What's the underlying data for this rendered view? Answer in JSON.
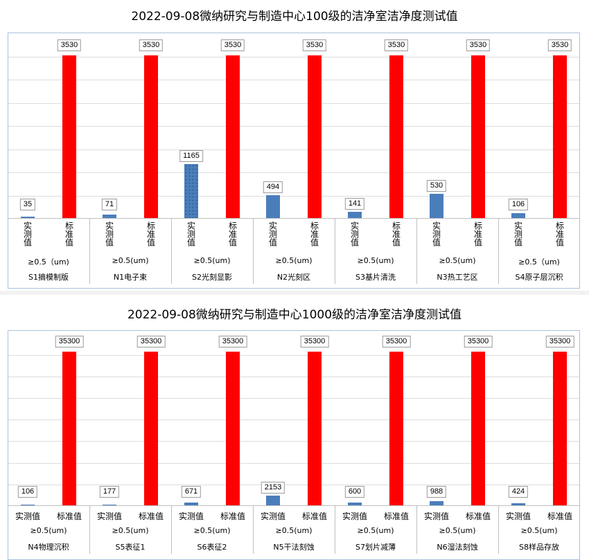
{
  "chart_data": [
    {
      "type": "bar",
      "title": "2022-09-08微纳研究与制造中心100级的洁净室洁净度测试值",
      "bar_labels": [
        "实测值",
        "标准值"
      ],
      "label_orientation": "vertical",
      "ylim": [
        0,
        3530
      ],
      "colors": {
        "actual": "#4a7ebb",
        "standard": "#ff0000"
      },
      "groups": [
        {
          "name": "S1摘模制版",
          "size": "≥0.5（um)",
          "actual": 35,
          "standard": 3530
        },
        {
          "name": "N1电子束",
          "size": "≥0.5(um)",
          "actual": 71,
          "standard": 3530
        },
        {
          "name": "S2光刻显影",
          "size": "≥0.5(um)",
          "actual": 1165,
          "standard": 3530
        },
        {
          "name": "N2光刻区",
          "size": "≥0.5(um)",
          "actual": 494,
          "standard": 3530
        },
        {
          "name": "S3基片清洗",
          "size": "≥0.5(um)",
          "actual": 141,
          "standard": 3530
        },
        {
          "name": "N3热工艺区",
          "size": "≥0.5(um)",
          "actual": 530,
          "standard": 3530
        },
        {
          "name": "S4原子层沉积",
          "size": "≥0.5（um)",
          "actual": 106,
          "standard": 3530
        }
      ]
    },
    {
      "type": "bar",
      "title": "2022-09-08微纳研究与制造中心1000级的洁净室洁净度测试值",
      "bar_labels": [
        "实测值",
        "标准值"
      ],
      "label_orientation": "horizontal",
      "ylim": [
        0,
        35300
      ],
      "colors": {
        "actual": "#4a7ebb",
        "standard": "#ff0000"
      },
      "groups": [
        {
          "name": "N4物理沉积",
          "size": "≥0.5(um)",
          "actual": 106,
          "standard": 35300
        },
        {
          "name": "S5表征1",
          "size": "≥0.5(um)",
          "actual": 177,
          "standard": 35300
        },
        {
          "name": "S6表征2",
          "size": "≥0.5(um)",
          "actual": 671,
          "standard": 35300
        },
        {
          "name": "N5干法刻蚀",
          "size": "≥0.5(um)",
          "actual": 2153,
          "standard": 35300
        },
        {
          "name": "S7划片减薄",
          "size": "≥0.5(um)",
          "actual": 600,
          "standard": 35300
        },
        {
          "name": "N6湿法刻蚀",
          "size": "≥0.5(um)",
          "actual": 988,
          "standard": 35300
        },
        {
          "name": "S8样品存放",
          "size": "≥0.5(um)",
          "actual": 424,
          "standard": 35300
        }
      ]
    }
  ]
}
